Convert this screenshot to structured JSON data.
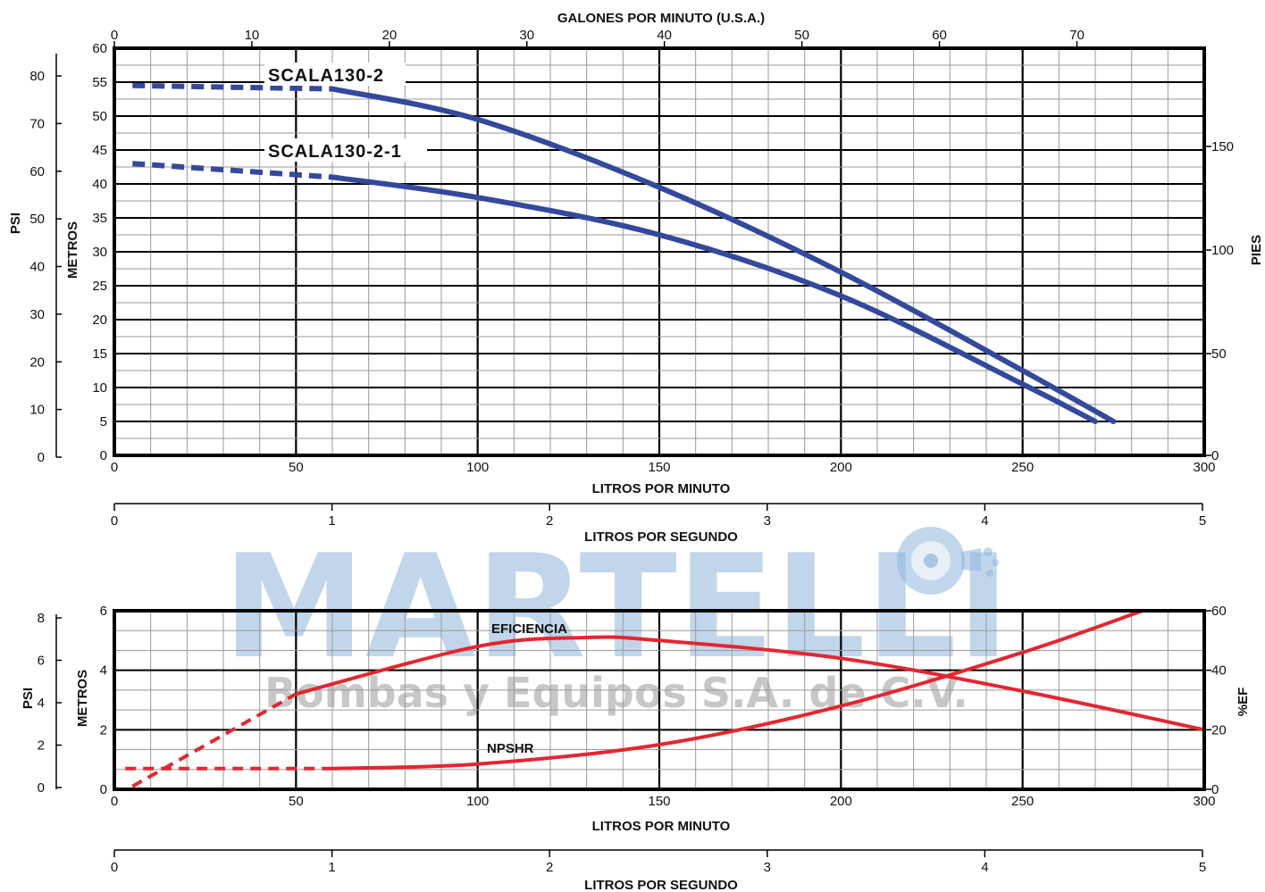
{
  "watermark": {
    "brand": "MARTELLI",
    "subtitle": "Bombas y Equipos S.A. de C.V."
  },
  "colors": {
    "head_curve": "#34499c",
    "eff_npshr_curve": "#e42630",
    "grid_major": "#000000",
    "grid_minor": "#9a9a9a"
  },
  "chart_data": [
    {
      "type": "line",
      "title": "",
      "xlabel": "LITROS POR MINUTO",
      "xlim": [
        0,
        300
      ],
      "x_ticks": [
        "0",
        "50",
        "100",
        "150",
        "200",
        "250",
        "300"
      ],
      "top_axis": {
        "label": "GALONES POR MINUTO (U.S.A.)",
        "ticks": [
          "0",
          "10",
          "20",
          "30",
          "40",
          "50",
          "60",
          "70"
        ]
      },
      "bottom_axis2": {
        "label": "LITROS POR SEGUNDO",
        "ticks": [
          "0",
          "1",
          "2",
          "3",
          "4",
          "5"
        ]
      },
      "ylabel": "METROS",
      "ylim": [
        0,
        60
      ],
      "y_ticks": [
        "0",
        "5",
        "10",
        "15",
        "20",
        "25",
        "30",
        "35",
        "40",
        "45",
        "50",
        "55",
        "60"
      ],
      "left_axis2": {
        "label": "PSI",
        "ticks": [
          "0",
          "10",
          "20",
          "30",
          "40",
          "50",
          "60",
          "70",
          "80"
        ]
      },
      "right_axis": {
        "label": "PIES",
        "ticks": [
          "0",
          "50",
          "100",
          "150"
        ]
      },
      "grid": true,
      "legend": "none",
      "series": [
        {
          "name": "SCALA130-2",
          "dashed_until": 60,
          "x": [
            5,
            60,
            100,
            150,
            200,
            250,
            275
          ],
          "y": [
            54.5,
            54,
            49.5,
            39.5,
            27,
            12.5,
            5
          ]
        },
        {
          "name": "SCALA130-2-1",
          "dashed_until": 60,
          "x": [
            5,
            60,
            100,
            150,
            200,
            250,
            270
          ],
          "y": [
            43,
            41,
            38,
            32.5,
            23.5,
            10.5,
            5
          ]
        }
      ]
    },
    {
      "type": "line",
      "title": "",
      "xlabel": "LITROS POR MINUTO",
      "xlim": [
        0,
        300
      ],
      "x_ticks": [
        "0",
        "50",
        "100",
        "150",
        "200",
        "250",
        "300"
      ],
      "bottom_axis2": {
        "label": "LITROS POR SEGUNDO",
        "ticks": [
          "0",
          "1",
          "2",
          "3",
          "4",
          "5"
        ]
      },
      "ylabel": "METROS",
      "ylim": [
        0,
        6
      ],
      "y_ticks": [
        "0",
        "2",
        "4",
        "6"
      ],
      "left_axis2": {
        "label": "PSI",
        "ticks": [
          "0",
          "2",
          "4",
          "6",
          "8"
        ]
      },
      "right_axis": {
        "label": "%EF",
        "ticks": [
          "0",
          "20",
          "40",
          "60"
        ]
      },
      "grid": true,
      "legend": "none",
      "series": [
        {
          "name": "EFICIENCIA",
          "axis": "%EF",
          "dashed_until": 50,
          "x": [
            5,
            50,
            100,
            130,
            150,
            200,
            250,
            300
          ],
          "y": [
            1,
            32,
            48,
            51,
            50,
            44,
            33,
            20
          ]
        },
        {
          "name": "NPSHR",
          "axis": "METROS",
          "dashed_until": 60,
          "x": [
            3,
            60,
            100,
            150,
            200,
            250,
            283
          ],
          "y": [
            0.7,
            0.7,
            0.85,
            1.5,
            2.8,
            4.6,
            6
          ]
        }
      ]
    }
  ]
}
